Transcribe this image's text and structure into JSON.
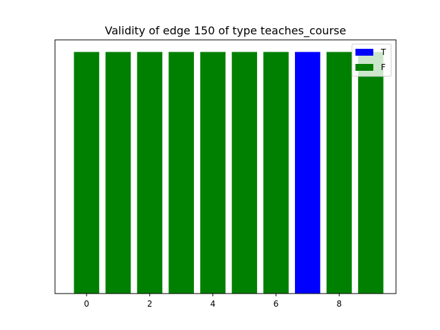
{
  "chart_data": {
    "type": "bar",
    "title": "Validity of edge 150 of type teaches_course",
    "xlabel": "",
    "ylabel": "",
    "x": [
      0,
      1,
      2,
      3,
      4,
      5,
      6,
      7,
      8,
      9
    ],
    "values": [
      1,
      1,
      1,
      1,
      1,
      1,
      1,
      1,
      1,
      1
    ],
    "validity": [
      "F",
      "F",
      "F",
      "F",
      "F",
      "F",
      "F",
      "T",
      "F",
      "F"
    ],
    "xlim": [
      -1.0,
      9.8
    ],
    "ylim": [
      0,
      1.05
    ],
    "xticks": [
      0,
      2,
      4,
      6,
      8
    ],
    "yticks_visible": false,
    "grid": false,
    "legend": {
      "placement": "top-right",
      "entries": [
        {
          "label": "T",
          "color": "#0000ff"
        },
        {
          "label": "F",
          "color": "#008000"
        }
      ]
    },
    "colors": {
      "T": "#0000ff",
      "F": "#008000"
    }
  }
}
